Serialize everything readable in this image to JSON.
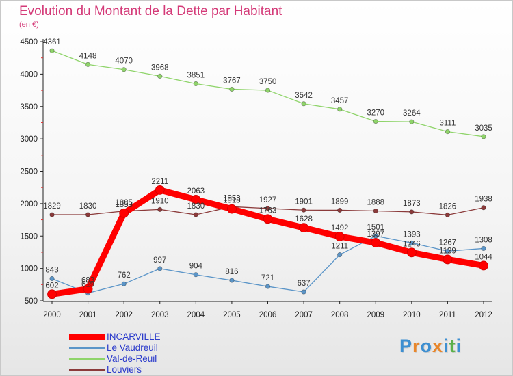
{
  "header": {
    "title": "Evolution du Montant de la Dette par Habitant",
    "subtitle": "(en €)"
  },
  "colors": {
    "title": "#d43a78",
    "legend_text": "#2a3acb"
  },
  "logo": {
    "text": "Proxiti",
    "letters": [
      "P",
      "r",
      "o",
      "x",
      "i",
      "t",
      "i"
    ],
    "letter_colors": [
      "#3d8fd1",
      "#e8862b",
      "#3d8fd1",
      "#e8862b",
      "#3d8fd1",
      "#5bb04a",
      "#3d8fd1"
    ]
  },
  "chart_data": {
    "type": "line",
    "title": "Evolution du Montant de la Dette par Habitant",
    "subtitle": "(en €)",
    "xlabel": "",
    "ylabel": "",
    "x": [
      "2000",
      "2001",
      "2002",
      "2003",
      "2004",
      "2005",
      "2006",
      "2007",
      "2008",
      "2009",
      "2010",
      "2011",
      "2012"
    ],
    "ylim": [
      500,
      4500
    ],
    "yticks": [
      500,
      1000,
      1500,
      2000,
      2500,
      3000,
      3500,
      4000,
      4500
    ],
    "grid": false,
    "legend_position": "bottom-left",
    "series": [
      {
        "name": "INCARVILLE",
        "color": "#ff0000",
        "bold": true,
        "values": [
          602,
          683,
          1853,
          2211,
          2063,
          1918,
          1763,
          1628,
          1492,
          1397,
          1246,
          1139,
          1044
        ]
      },
      {
        "name": "Le Vaudreuil",
        "color": "#5b95c8",
        "values": [
          843,
          619,
          762,
          997,
          904,
          816,
          721,
          637,
          1211,
          1501,
          1393,
          1267,
          1308
        ]
      },
      {
        "name": "Val-de-Reuil",
        "color": "#8fd46a",
        "values": [
          4361,
          4148,
          4070,
          3968,
          3851,
          3767,
          3750,
          3542,
          3457,
          3270,
          3264,
          3111,
          3035
        ]
      },
      {
        "name": "Louviers",
        "color": "#8b3a3a",
        "values": [
          1829,
          1830,
          1885,
          1910,
          1830,
          1953,
          1927,
          1901,
          1899,
          1888,
          1873,
          1826,
          1938
        ]
      }
    ]
  }
}
